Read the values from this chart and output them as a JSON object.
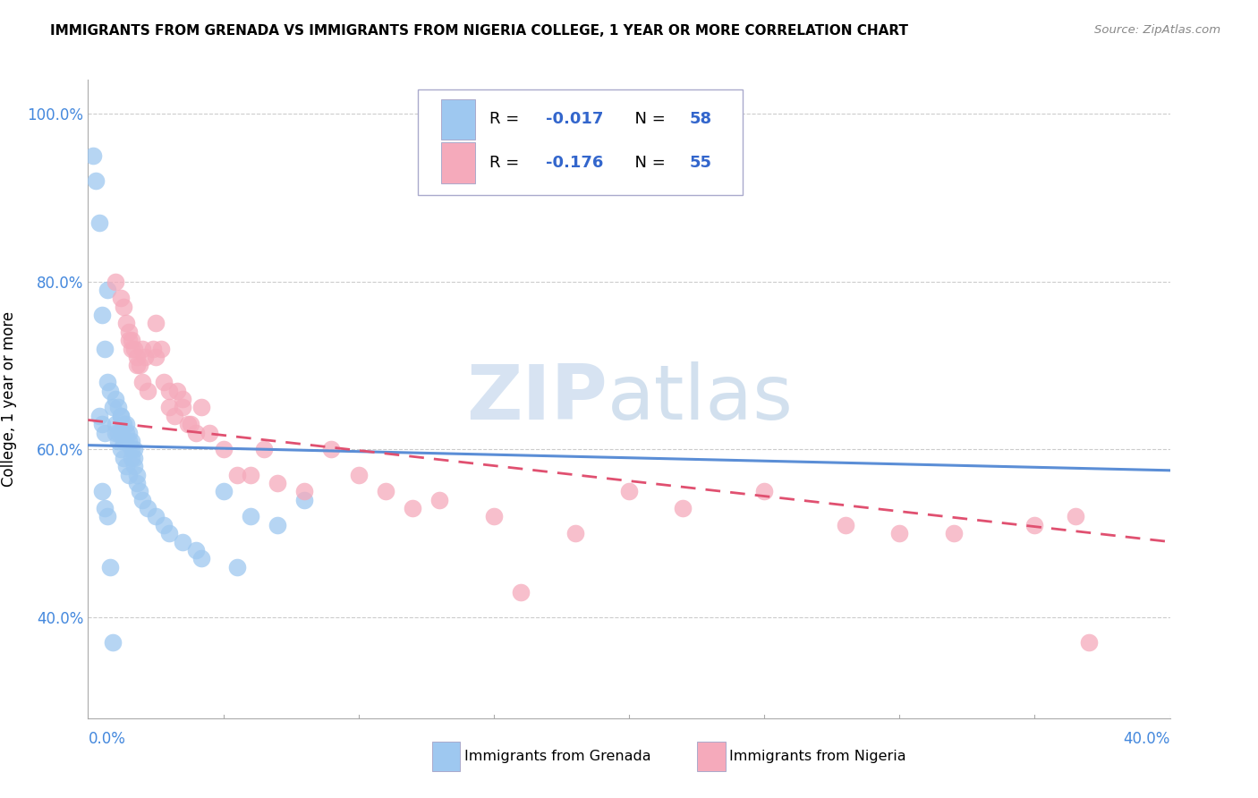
{
  "title": "IMMIGRANTS FROM GRENADA VS IMMIGRANTS FROM NIGERIA COLLEGE, 1 YEAR OR MORE CORRELATION CHART",
  "source": "Source: ZipAtlas.com",
  "ylabel": "College, 1 year or more",
  "xlim": [
    0.0,
    0.4
  ],
  "ylim": [
    0.28,
    1.04
  ],
  "yticks": [
    0.4,
    0.6,
    0.8,
    1.0
  ],
  "ytick_labels": [
    "40.0%",
    "60.0%",
    "80.0%",
    "100.0%"
  ],
  "xtick_left_label": "0.0%",
  "xtick_right_label": "40.0%",
  "color_grenada": "#9EC8F0",
  "color_nigeria": "#F5AABB",
  "color_grenada_line": "#5B8ED6",
  "color_nigeria_line": "#E05070",
  "watermark_zip": "ZIP",
  "watermark_atlas": "atlas",
  "grenada_r": "-0.017",
  "grenada_n": "58",
  "nigeria_r": "-0.176",
  "nigeria_n": "55",
  "scatter_grenada_x": [
    0.002,
    0.003,
    0.004,
    0.005,
    0.006,
    0.007,
    0.004,
    0.005,
    0.006,
    0.007,
    0.008,
    0.009,
    0.01,
    0.011,
    0.01,
    0.011,
    0.012,
    0.012,
    0.013,
    0.01,
    0.011,
    0.012,
    0.013,
    0.014,
    0.015,
    0.012,
    0.013,
    0.014,
    0.015,
    0.016,
    0.017,
    0.014,
    0.015,
    0.016,
    0.017,
    0.016,
    0.017,
    0.018,
    0.018,
    0.019,
    0.02,
    0.022,
    0.025,
    0.028,
    0.03,
    0.035,
    0.04,
    0.042,
    0.005,
    0.006,
    0.007,
    0.008,
    0.009,
    0.05,
    0.055,
    0.06,
    0.07,
    0.08
  ],
  "scatter_grenada_y": [
    0.95,
    0.92,
    0.87,
    0.76,
    0.72,
    0.68,
    0.64,
    0.63,
    0.62,
    0.79,
    0.67,
    0.65,
    0.63,
    0.62,
    0.66,
    0.65,
    0.64,
    0.62,
    0.61,
    0.62,
    0.61,
    0.6,
    0.59,
    0.58,
    0.57,
    0.64,
    0.63,
    0.62,
    0.61,
    0.6,
    0.59,
    0.63,
    0.62,
    0.61,
    0.6,
    0.59,
    0.58,
    0.57,
    0.56,
    0.55,
    0.54,
    0.53,
    0.52,
    0.51,
    0.5,
    0.49,
    0.48,
    0.47,
    0.55,
    0.53,
    0.52,
    0.46,
    0.37,
    0.55,
    0.46,
    0.52,
    0.51,
    0.54
  ],
  "scatter_nigeria_x": [
    0.01,
    0.012,
    0.013,
    0.014,
    0.015,
    0.016,
    0.015,
    0.016,
    0.017,
    0.018,
    0.018,
    0.019,
    0.02,
    0.021,
    0.02,
    0.022,
    0.024,
    0.025,
    0.025,
    0.027,
    0.028,
    0.03,
    0.03,
    0.032,
    0.033,
    0.035,
    0.035,
    0.037,
    0.038,
    0.04,
    0.042,
    0.045,
    0.05,
    0.055,
    0.06,
    0.065,
    0.07,
    0.08,
    0.09,
    0.1,
    0.11,
    0.12,
    0.13,
    0.15,
    0.16,
    0.18,
    0.2,
    0.22,
    0.25,
    0.28,
    0.3,
    0.32,
    0.35,
    0.365,
    0.37
  ],
  "scatter_nigeria_y": [
    0.8,
    0.78,
    0.77,
    0.75,
    0.74,
    0.73,
    0.73,
    0.72,
    0.72,
    0.71,
    0.7,
    0.7,
    0.72,
    0.71,
    0.68,
    0.67,
    0.72,
    0.71,
    0.75,
    0.72,
    0.68,
    0.67,
    0.65,
    0.64,
    0.67,
    0.66,
    0.65,
    0.63,
    0.63,
    0.62,
    0.65,
    0.62,
    0.6,
    0.57,
    0.57,
    0.6,
    0.56,
    0.55,
    0.6,
    0.57,
    0.55,
    0.53,
    0.54,
    0.52,
    0.43,
    0.5,
    0.55,
    0.53,
    0.55,
    0.51,
    0.5,
    0.5,
    0.51,
    0.52,
    0.37
  ]
}
